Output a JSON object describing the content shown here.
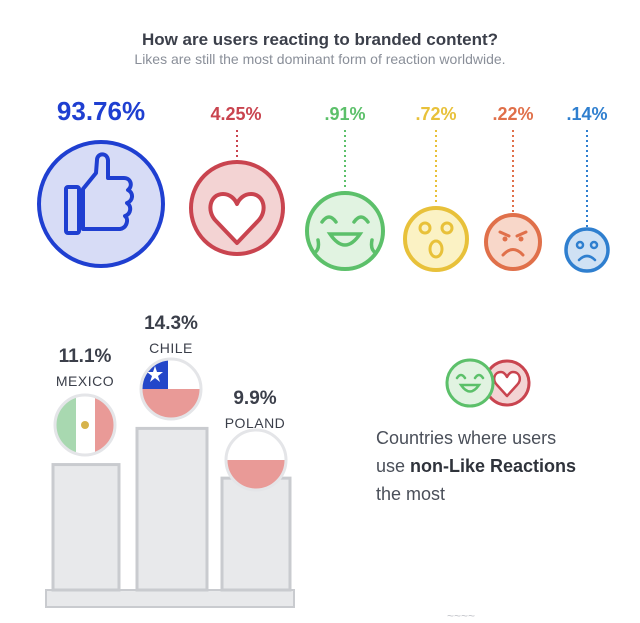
{
  "title": "How are users reacting to branded content?",
  "subtitle": "Likes are still the most dominant form of reaction worldwide.",
  "chart_data": [
    {
      "type": "bubble",
      "title": "How are users reacting to branded content?",
      "subtitle": "Likes are still the most dominant form of reaction worldwide.",
      "categories": [
        "Like",
        "Love",
        "Haha",
        "Wow",
        "Angry",
        "Sad"
      ],
      "values": [
        93.76,
        4.25,
        0.91,
        0.72,
        0.22,
        0.14
      ],
      "labels": [
        "93.76%",
        "4.25%",
        ".91%",
        ".72%",
        ".22%",
        ".14%"
      ],
      "colors": [
        "#1f3fd1",
        "#c9444f",
        "#5cc06a",
        "#e8c13a",
        "#e0704a",
        "#2f7fcf"
      ],
      "fills": [
        "#d7dcf6",
        "#f3d3d3",
        "#e1f3e1",
        "#fbf2c4",
        "#f8d7c9",
        "#cfe1f4"
      ],
      "icons": [
        "thumbs-up-icon",
        "heart-icon",
        "haha-face-icon",
        "wow-face-icon",
        "angry-face-icon",
        "sad-face-icon"
      ]
    },
    {
      "type": "bar",
      "title": "Countries where users use non-Like Reactions the most",
      "categories": [
        "MEXICO",
        "CHILE",
        "POLAND"
      ],
      "values": [
        11.1,
        14.3,
        9.9
      ],
      "labels": [
        "11.1%",
        "14.3%",
        "9.9%"
      ],
      "icons": [
        "mexico-flag-icon",
        "chile-flag-icon",
        "poland-flag-icon"
      ]
    }
  ],
  "caption": {
    "line1": "Countries where users",
    "line2_prefix": "use ",
    "line2_bold": "non-Like Reactions",
    "line3": "the most"
  },
  "footer_fragment": "~~~~"
}
